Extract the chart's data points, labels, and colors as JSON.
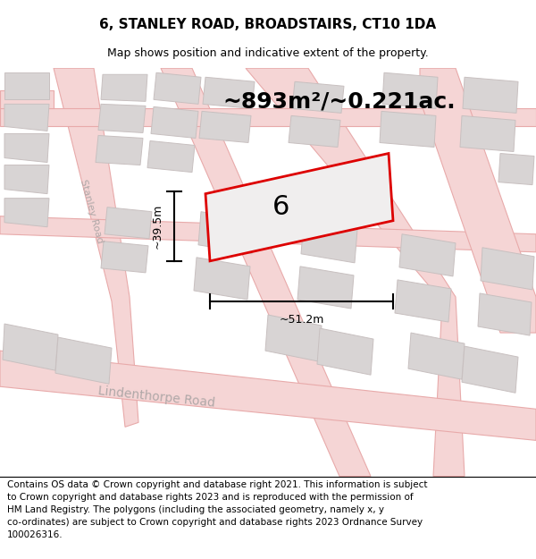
{
  "title": "6, STANLEY ROAD, BROADSTAIRS, CT10 1DA",
  "subtitle": "Map shows position and indicative extent of the property.",
  "area_label": "~893m²/~0.221ac.",
  "property_number": "6",
  "dim_width": "~51.2m",
  "dim_height": "~39.5m",
  "map_bg": "#f0eeee",
  "road_fill": "#f5d5d5",
  "road_edge": "#e8aaaa",
  "building_fill": "#d8d4d4",
  "building_edge": "#c8c0c0",
  "property_fill": "#f0eeee",
  "property_edge": "#dd0000",
  "footer_text": "Contains OS data © Crown copyright and database right 2021. This information is subject to Crown copyright and database rights 2023 and is reproduced with the permission of\nHM Land Registry. The polygons (including the associated geometry, namely x, y\nco-ordinates) are subject to Crown copyright and database rights 2023 Ordnance Survey\n100026316.",
  "stanley_road_label": "Stanley Road",
  "lindenthorpe_label": "Lindenthorpe Road",
  "title_fontsize": 11,
  "subtitle_fontsize": 9,
  "area_fontsize": 18,
  "number_fontsize": 22,
  "dim_fontsize": 9,
  "footer_fontsize": 7.5,
  "road_label_color": "#b0a8a8"
}
